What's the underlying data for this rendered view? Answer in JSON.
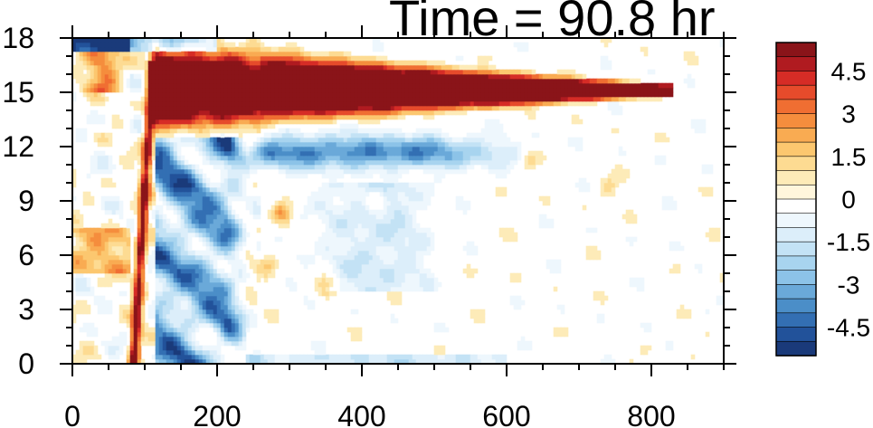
{
  "chart_data": {
    "type": "heatmap",
    "title": "Time = 90.8 hr",
    "xlabel": "",
    "ylabel": "",
    "xlim": [
      0,
      900
    ],
    "ylim": [
      0,
      18
    ],
    "x_ticks": [
      "0",
      "200",
      "400",
      "600",
      "800"
    ],
    "x_tick_values": [
      0,
      200,
      400,
      600,
      800
    ],
    "y_ticks": [
      "0",
      "3",
      "6",
      "9",
      "12",
      "15",
      "18"
    ],
    "y_tick_values": [
      0,
      3,
      6,
      9,
      12,
      15,
      18
    ],
    "colorbar": {
      "min": -5.5,
      "max": 5.5,
      "step": 0.5,
      "tick_labels": [
        "4.5",
        "3",
        "1.5",
        "0",
        "-1.5",
        "-3",
        "-4.5"
      ],
      "tick_values": [
        4.5,
        3,
        1.5,
        0,
        -1.5,
        -3,
        -4.5
      ],
      "colors": [
        "#8a1419",
        "#b01b20",
        "#d62c26",
        "#e64b2b",
        "#f06e32",
        "#f58d3d",
        "#f9ab52",
        "#fcc76f",
        "#fddb92",
        "#fdebb8",
        "#fff6dc",
        "#ffffff",
        "#eef7fd",
        "#dceefa",
        "#c3e2f5",
        "#a8d4ef",
        "#8cc3e8",
        "#6aa9d9",
        "#4b8ec8",
        "#336fb3",
        "#22529a",
        "#1a3a7a"
      ]
    },
    "features": [
      {
        "name": "upper-positive-band",
        "value": 6.0,
        "x_range": [
          110,
          800
        ],
        "y_center": 15.2
      },
      {
        "name": "negative-band-below",
        "value": -3.5,
        "x_range": [
          240,
          640
        ],
        "y_center": 11.7
      },
      {
        "name": "positive-front-line",
        "value": 5.5,
        "x_range": [
          90,
          115
        ],
        "y_range": [
          0,
          16.5
        ]
      },
      {
        "name": "negative-front-region",
        "value": -4.0,
        "x_range": [
          110,
          240
        ],
        "y_range": [
          0,
          12
        ]
      }
    ]
  }
}
